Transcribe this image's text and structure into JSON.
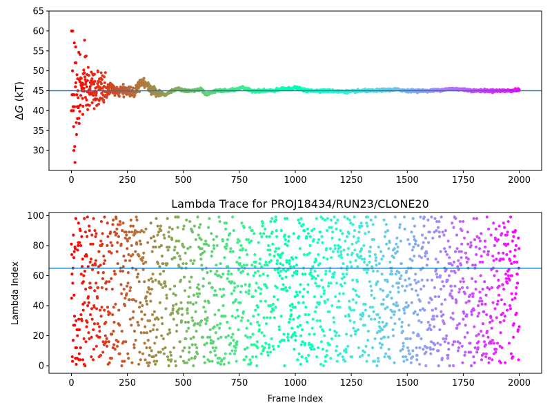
{
  "chart_data": [
    {
      "type": "scatter",
      "title": "",
      "xlabel": "",
      "ylabel": "ΔG (kT)",
      "ylabel_prefix": "Δ",
      "ylabel_var": "G",
      "ylabel_unit": " (kT)",
      "xlim": [
        -100,
        2100
      ],
      "ylim": [
        25,
        65
      ],
      "xticks": [
        0,
        250,
        500,
        750,
        1000,
        1250,
        1500,
        1750,
        2000
      ],
      "yticks": [
        30,
        35,
        40,
        45,
        50,
        55,
        60,
        65
      ],
      "hline": 45.0,
      "hline_color": "#1f77b4",
      "colormap": "rainbow",
      "grid": false,
      "frames": 2001,
      "series": [
        {
          "description": "Running ΔG estimate per frame, colored by frame index (rainbow: red at 0 to purple at 2000). Large scatter (26–60) in first ~100 frames converging to ~45.",
          "x": [
            0,
            5,
            10,
            15,
            20,
            25,
            30,
            35,
            40,
            45,
            50,
            55,
            60,
            70,
            80,
            90,
            100,
            120,
            140,
            160,
            180,
            200,
            220,
            250,
            280,
            300,
            320,
            350,
            380,
            400,
            420,
            450,
            480,
            500,
            550,
            580,
            600,
            620,
            650,
            700,
            750,
            760,
            800,
            850,
            900,
            950,
            980,
            1000,
            1050,
            1100,
            1150,
            1200,
            1250,
            1300,
            1350,
            1400,
            1450,
            1500,
            1550,
            1600,
            1650,
            1700,
            1750,
            1800,
            1850,
            1900,
            1950,
            2000
          ],
          "y": [
            40,
            60,
            44,
            36,
            41,
            57,
            27,
            52,
            47,
            37,
            49,
            44,
            48,
            46,
            44,
            45,
            44,
            46,
            47,
            45,
            46,
            44.5,
            45,
            45,
            44.5,
            46.5,
            47.5,
            45.5,
            44.5,
            44.5,
            44,
            45,
            45.5,
            45,
            45,
            45.5,
            44,
            44.5,
            45,
            45,
            45.5,
            46,
            45,
            45,
            45,
            45.5,
            45.5,
            45.8,
            45,
            45,
            45,
            44.8,
            44.8,
            45,
            45,
            45.2,
            45.3,
            45,
            45,
            45,
            45.2,
            45.5,
            45.3,
            45,
            45,
            45,
            45,
            45.2
          ]
        }
      ]
    },
    {
      "type": "scatter",
      "title": "Lambda Trace for PROJ18434/RUN23/CLONE20",
      "xlabel": "Frame Index",
      "ylabel": "Lambda Index",
      "xlim": [
        -100,
        2100
      ],
      "ylim": [
        -5,
        102
      ],
      "xticks": [
        0,
        250,
        500,
        750,
        1000,
        1250,
        1500,
        1750,
        2000
      ],
      "yticks": [
        0,
        20,
        40,
        60,
        80,
        100
      ],
      "hline": 65,
      "hline_color": "#1f77b4",
      "colormap": "rainbow",
      "grid": false,
      "frames": 2001,
      "series": [
        {
          "description": "Lambda index (0–99) visited at each frame; points uniformly scattered over 0–100, colored by frame index (rainbow: red at 0 to purple at 2000).",
          "x_range": [
            0,
            2000
          ],
          "y_range": [
            0,
            99
          ]
        }
      ]
    }
  ]
}
